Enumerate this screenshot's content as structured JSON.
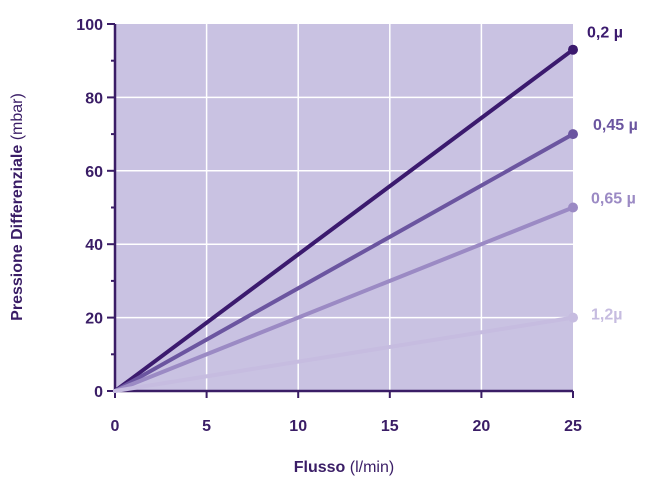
{
  "chart_data": {
    "type": "line",
    "x": [
      0,
      25
    ],
    "xlim": [
      0,
      25
    ],
    "ylim": [
      0,
      100
    ],
    "x_ticks": [
      "0",
      "5",
      "10",
      "15",
      "20",
      "25"
    ],
    "y_ticks": [
      "0",
      "20",
      "40",
      "60",
      "80",
      "100"
    ],
    "xlabel": {
      "bold": "Flusso",
      "unit": " (l/min)"
    },
    "ylabel": {
      "bold": "Pressione Differenziale",
      "unit": " (mbar)"
    },
    "grid": true,
    "series": [
      {
        "name": "0,2 µ",
        "values": [
          0,
          93
        ],
        "color": "#3b1a6e"
      },
      {
        "name": "0,45 µ",
        "values": [
          0,
          70
        ],
        "color": "#6b55a0"
      },
      {
        "name": "0,65 µ",
        "values": [
          0,
          50
        ],
        "color": "#9b8ac4"
      },
      {
        "name": "1,2µ",
        "values": [
          0,
          20
        ],
        "color": "#c6bce0"
      }
    ]
  },
  "colors": {
    "plot_background": "#c9c2e2",
    "grid": "#ffffff",
    "axis": "#3a1d66"
  }
}
